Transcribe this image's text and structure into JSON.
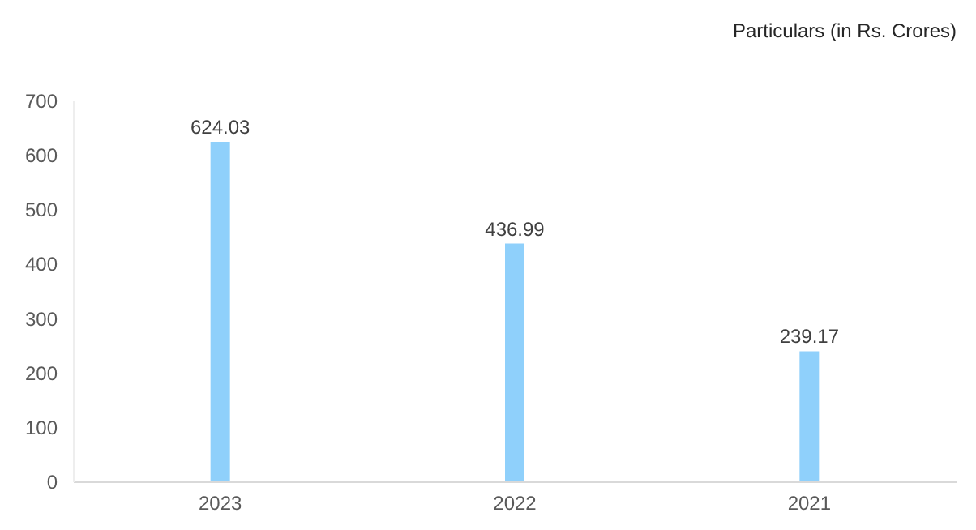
{
  "chart_data": {
    "type": "bar",
    "title": "Particulars (in Rs. Crores)",
    "categories": [
      "2023",
      "2022",
      "2021"
    ],
    "values": [
      624.03,
      436.99,
      239.17
    ],
    "color": "#8fd0fb",
    "ylim": [
      0,
      700
    ],
    "yticks": [
      0,
      100,
      200,
      300,
      400,
      500,
      600,
      700
    ],
    "grid": false,
    "data_labels": true
  }
}
